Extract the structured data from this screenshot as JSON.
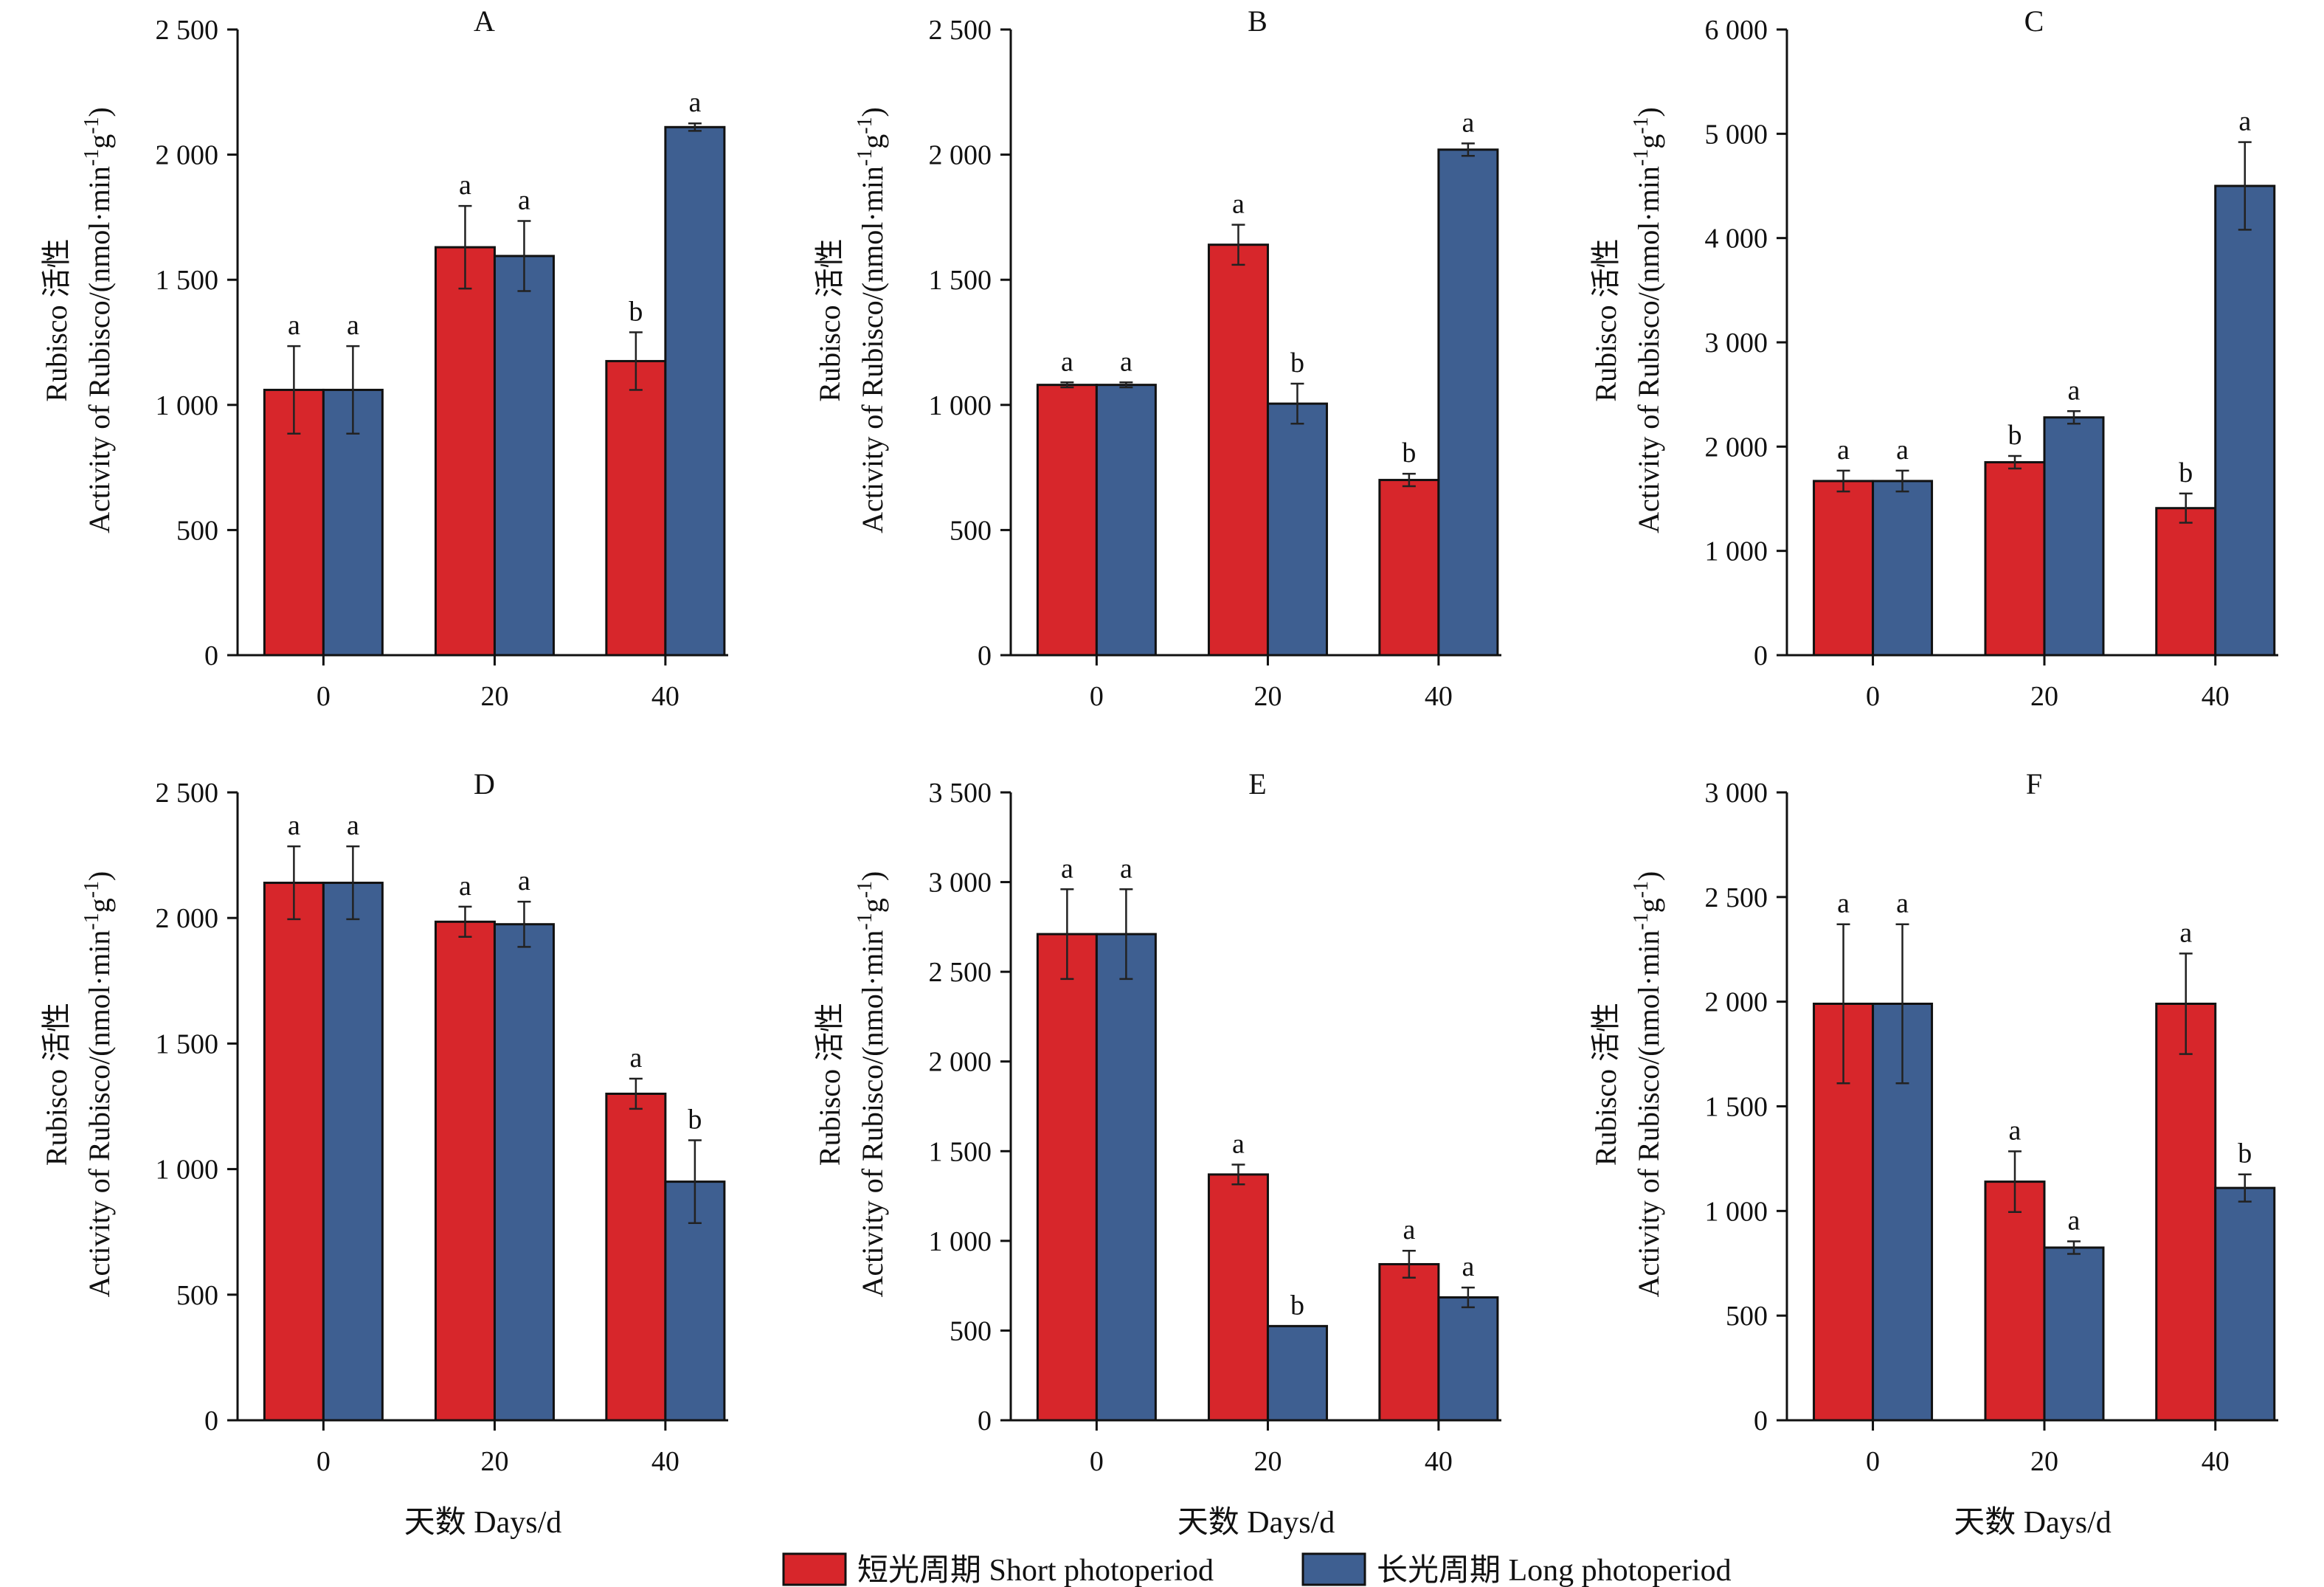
{
  "chart_data": {
    "type": "bar",
    "series_names": [
      "短光周期 Short photoperiod",
      "长光周期 Long photoperiod"
    ],
    "series_colors": [
      "#D7262B",
      "#3E5F91"
    ],
    "ylabel_line1": "Rubisco 活性",
    "ylabel_line2": "Activity of Rubisco/(nmol·min",
    "ylabel_sup1": "-1",
    "ylabel_mid": "g",
    "ylabel_sup2": "-1",
    "ylabel_end": ")",
    "xlabel": "天数 Days/d",
    "categories": [
      "0",
      "20",
      "40"
    ],
    "panels": [
      {
        "title": "A",
        "ylim": [
          0,
          2500
        ],
        "ytick_labels": [
          "0",
          "500",
          "1 000",
          "1 500",
          "2 000",
          "2 500"
        ],
        "ytick_values": [
          0,
          500,
          1000,
          1500,
          2000,
          2500
        ],
        "series": [
          {
            "values": [
              1060,
              1630,
              1175
            ],
            "errors": [
              175,
              165,
              115
            ],
            "letters": [
              "a",
              "a",
              "b"
            ]
          },
          {
            "values": [
              1060,
              1595,
              2110
            ],
            "errors": [
              175,
              140,
              15
            ],
            "letters": [
              "a",
              "a",
              "a"
            ]
          }
        ]
      },
      {
        "title": "B",
        "ylim": [
          0,
          2500
        ],
        "ytick_labels": [
          "0",
          "500",
          "1 000",
          "1 500",
          "2 000",
          "2 500"
        ],
        "ytick_values": [
          0,
          500,
          1000,
          1500,
          2000,
          2500
        ],
        "series": [
          {
            "values": [
              1080,
              1640,
              700
            ],
            "errors": [
              10,
              80,
              25
            ],
            "letters": [
              "a",
              "a",
              "b"
            ]
          },
          {
            "values": [
              1080,
              1005,
              2020
            ],
            "errors": [
              10,
              80,
              25
            ],
            "letters": [
              "a",
              "b",
              "a"
            ]
          }
        ]
      },
      {
        "title": "C",
        "ylim": [
          0,
          6000
        ],
        "ytick_labels": [
          "0",
          "1 000",
          "2 000",
          "3 000",
          "4 000",
          "5 000",
          "6 000"
        ],
        "ytick_values": [
          0,
          1000,
          2000,
          3000,
          4000,
          5000,
          6000
        ],
        "series": [
          {
            "values": [
              1670,
              1850,
              1410
            ],
            "errors": [
              100,
              60,
              140
            ],
            "letters": [
              "a",
              "b",
              "b"
            ]
          },
          {
            "values": [
              1670,
              2280,
              4500
            ],
            "errors": [
              100,
              60,
              420
            ],
            "letters": [
              "a",
              "a",
              "a"
            ]
          }
        ]
      },
      {
        "title": "D",
        "ylim": [
          0,
          2500
        ],
        "ytick_labels": [
          "0",
          "500",
          "1 000",
          "1 500",
          "2 000",
          "2 500"
        ],
        "ytick_values": [
          0,
          500,
          1000,
          1500,
          2000,
          2500
        ],
        "series": [
          {
            "values": [
              2140,
              1985,
              1300
            ],
            "errors": [
              145,
              60,
              60
            ],
            "letters": [
              "a",
              "a",
              "a"
            ]
          },
          {
            "values": [
              2140,
              1975,
              950
            ],
            "errors": [
              145,
              90,
              165
            ],
            "letters": [
              "a",
              "a",
              "b"
            ]
          }
        ]
      },
      {
        "title": "E",
        "ylim": [
          0,
          3500
        ],
        "ytick_labels": [
          "0",
          "500",
          "1 000",
          "1 500",
          "2 000",
          "2 500",
          "3 000",
          "3 500"
        ],
        "ytick_values": [
          0,
          500,
          1000,
          1500,
          2000,
          2500,
          3000,
          3500
        ],
        "series": [
          {
            "values": [
              2710,
              1370,
              870
            ],
            "errors": [
              250,
              55,
              75
            ],
            "letters": [
              "a",
              "a",
              "a"
            ]
          },
          {
            "values": [
              2710,
              525,
              685
            ],
            "errors": [
              250,
              0,
              55
            ],
            "letters": [
              "a",
              "b",
              "a"
            ]
          }
        ]
      },
      {
        "title": "F",
        "ylim": [
          0,
          3000
        ],
        "ytick_labels": [
          "0",
          "500",
          "1 000",
          "1 500",
          "2 000",
          "2 500",
          "3 000"
        ],
        "ytick_values": [
          0,
          500,
          1000,
          1500,
          2000,
          2500,
          3000
        ],
        "series": [
          {
            "values": [
              1990,
              1140,
              1990
            ],
            "errors": [
              380,
              145,
              240
            ],
            "letters": [
              "a",
              "a",
              "a"
            ]
          },
          {
            "values": [
              1990,
              825,
              1110
            ],
            "errors": [
              380,
              30,
              65
            ],
            "letters": [
              "a",
              "a",
              "b"
            ]
          }
        ]
      }
    ],
    "grid": false,
    "legend_position": "bottom-center"
  }
}
